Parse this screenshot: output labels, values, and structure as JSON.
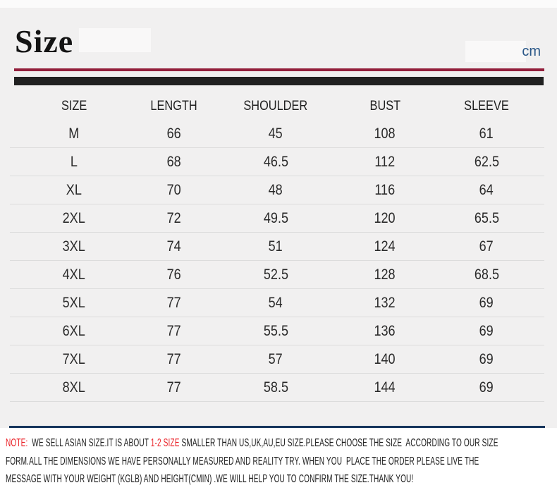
{
  "header": {
    "title": "Size",
    "unit": "cm"
  },
  "chart_data": {
    "type": "table",
    "title": "Size",
    "unit": "cm",
    "columns": [
      "SIZE",
      "LENGTH",
      "SHOULDER",
      "BUST",
      "SLEEVE"
    ],
    "rows": [
      [
        "M",
        "66",
        "45",
        "108",
        "61"
      ],
      [
        "L",
        "68",
        "46.5",
        "112",
        "62.5"
      ],
      [
        "XL",
        "70",
        "48",
        "116",
        "64"
      ],
      [
        "2XL",
        "72",
        "49.5",
        "120",
        "65.5"
      ],
      [
        "3XL",
        "74",
        "51",
        "124",
        "67"
      ],
      [
        "4XL",
        "76",
        "52.5",
        "128",
        "68.5"
      ],
      [
        "5XL",
        "77",
        "54",
        "132",
        "69"
      ],
      [
        "6XL",
        "77",
        "55.5",
        "136",
        "69"
      ],
      [
        "7XL",
        "77",
        "57",
        "140",
        "69"
      ],
      [
        "8XL",
        "77",
        "58.5",
        "144",
        "69"
      ]
    ]
  },
  "note": {
    "lines": [
      {
        "segments": [
          {
            "text": "NOTE:",
            "red": true
          },
          {
            "text": "  WE SELL ASIAN SIZE.IT IS ABOUT ",
            "red": false
          },
          {
            "text": "1-2 SIZE",
            "red": true
          },
          {
            "text": " SMALLER THAN US,UK,AU,EU SIZE.PLEASE CHOOSE THE SIZE  ACCORDING TO OUR SIZE",
            "red": false
          }
        ]
      },
      {
        "segments": [
          {
            "text": "FORM.ALL THE DIMENSIONS WE HAVE PERSONALLY MEASURED AND REALITY TRY. WHEN YOU  PLACE THE ORDER PLEASE LIVE THE",
            "red": false
          }
        ]
      },
      {
        "segments": [
          {
            "text": "MESSAGE WITH YOUR WEIGHT (KGLB) AND HEIGHT(CMIN) .WE WILL HELP YOU TO CONFIRM THE SIZE.THANK YOU!",
            "red": false
          }
        ]
      }
    ]
  },
  "colors": {
    "accent_red": "#931f3c",
    "bar_black": "#212121",
    "navy_line": "#17365d",
    "note_red": "#ea2127",
    "unit_blue": "#2a5788"
  }
}
